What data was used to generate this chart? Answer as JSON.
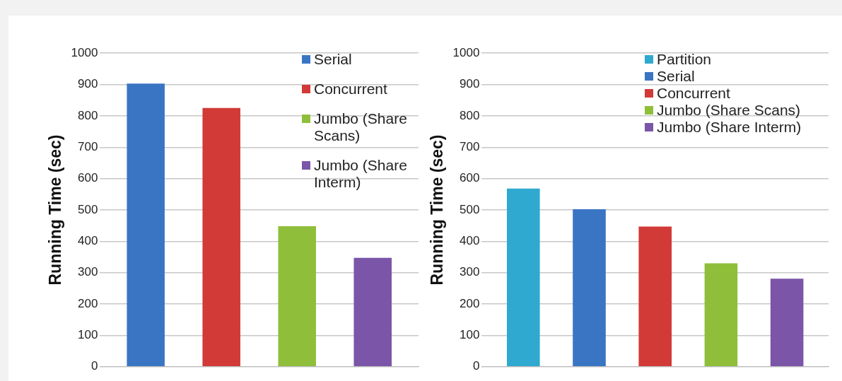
{
  "chart_data": [
    {
      "type": "bar",
      "categories": [
        null
      ],
      "ylabel": "Running Time (sec)",
      "ylim": [
        0,
        1000
      ],
      "yticks": [
        0,
        100,
        200,
        300,
        400,
        500,
        600,
        700,
        800,
        900,
        1000
      ],
      "grid": "y",
      "legend": "top right",
      "series": [
        {
          "name": "Serial",
          "color": "#3a75c4",
          "values": [
            903
          ]
        },
        {
          "name": "Concurrent",
          "color": "#d13a36",
          "values": [
            825
          ]
        },
        {
          "name": "Jumbo (Share Scans)",
          "color": "#8fbf3a",
          "values": [
            448
          ]
        },
        {
          "name": "Jumbo (Share Interm)",
          "color": "#7a55a8",
          "values": [
            347
          ]
        }
      ]
    },
    {
      "type": "bar",
      "categories": [
        null
      ],
      "ylabel": "Running Time (sec)",
      "ylim": [
        0,
        1000
      ],
      "yticks": [
        0,
        100,
        200,
        300,
        400,
        500,
        600,
        700,
        800,
        900,
        1000
      ],
      "grid": "y",
      "legend": "top right",
      "series": [
        {
          "name": "Partition",
          "color": "#2fa9cf",
          "values": [
            568
          ]
        },
        {
          "name": "Serial",
          "color": "#3a75c4",
          "values": [
            502
          ]
        },
        {
          "name": "Concurrent",
          "color": "#d13a36",
          "values": [
            447
          ]
        },
        {
          "name": "Jumbo (Share Scans)",
          "color": "#8fbf3a",
          "values": [
            330
          ]
        },
        {
          "name": "Jumbo (Share Interm)",
          "color": "#7a55a8",
          "values": [
            281
          ]
        }
      ]
    }
  ]
}
